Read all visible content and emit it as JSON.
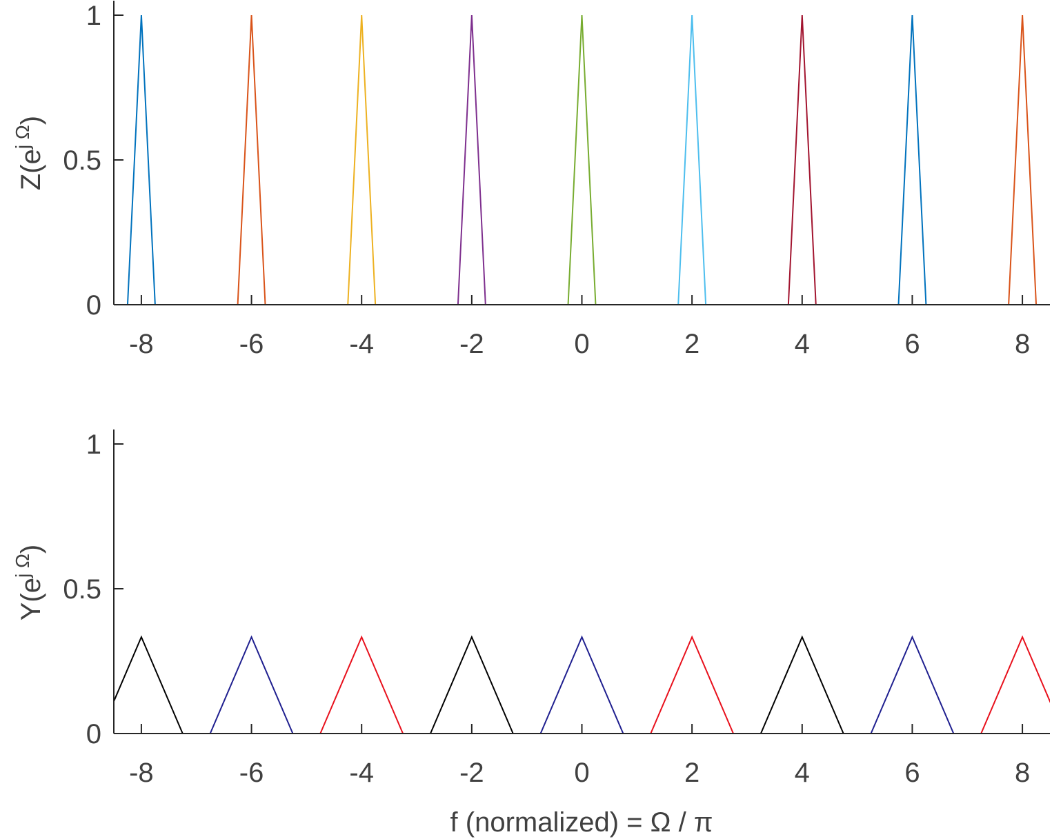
{
  "chart_data": [
    {
      "type": "line",
      "ylabel": {
        "main": "Z(e",
        "sup": "j Ω",
        "tail": ")"
      },
      "xlabel": "",
      "xlim": [
        -8.5,
        8.5
      ],
      "ylim": [
        0,
        1.05
      ],
      "xticks": [
        -8,
        -6,
        -4,
        -2,
        0,
        2,
        4,
        6,
        8
      ],
      "yticks": [
        0,
        0.5,
        1
      ],
      "xtick_labels": [
        "-8",
        "-6",
        "-4",
        "-2",
        "0",
        "2",
        "4",
        "6",
        "8"
      ],
      "ytick_labels": [
        "0",
        "0.5",
        "1"
      ],
      "grid": false,
      "series": [
        {
          "center": -8,
          "halfwidth": 0.25,
          "peak": 1,
          "color": "#0072BD"
        },
        {
          "center": -6,
          "halfwidth": 0.25,
          "peak": 1,
          "color": "#D95319"
        },
        {
          "center": -4,
          "halfwidth": 0.25,
          "peak": 1,
          "color": "#EDB120"
        },
        {
          "center": -2,
          "halfwidth": 0.25,
          "peak": 1,
          "color": "#7E2F8E"
        },
        {
          "center": 0,
          "halfwidth": 0.25,
          "peak": 1,
          "color": "#77AC30"
        },
        {
          "center": 2,
          "halfwidth": 0.25,
          "peak": 1,
          "color": "#4DBEEE"
        },
        {
          "center": 4,
          "halfwidth": 0.25,
          "peak": 1,
          "color": "#A2142F"
        },
        {
          "center": 6,
          "halfwidth": 0.25,
          "peak": 1,
          "color": "#0072BD"
        },
        {
          "center": 8,
          "halfwidth": 0.25,
          "peak": 1,
          "color": "#D95319"
        }
      ]
    },
    {
      "type": "line",
      "ylabel": {
        "main": "Y(e",
        "sup": "j Ω",
        "tail": ")"
      },
      "xlabel": "f (normalized) = Ω  / π",
      "xlim": [
        -8.5,
        8.5
      ],
      "ylim": [
        0,
        1.05
      ],
      "xticks": [
        -8,
        -6,
        -4,
        -2,
        0,
        2,
        4,
        6,
        8
      ],
      "yticks": [
        0,
        0.5,
        1
      ],
      "xtick_labels": [
        "-8",
        "-6",
        "-4",
        "-2",
        "0",
        "2",
        "4",
        "6",
        "8"
      ],
      "ytick_labels": [
        "0",
        "0.5",
        "1"
      ],
      "grid": false,
      "series": [
        {
          "center": -8,
          "halfwidth": 0.75,
          "peak": 0.3333,
          "color": "#000000"
        },
        {
          "center": -6,
          "halfwidth": 0.75,
          "peak": 0.3333,
          "color": "#1F1F8F"
        },
        {
          "center": -4,
          "halfwidth": 0.75,
          "peak": 0.3333,
          "color": "#E8101C"
        },
        {
          "center": -2,
          "halfwidth": 0.75,
          "peak": 0.3333,
          "color": "#000000"
        },
        {
          "center": 0,
          "halfwidth": 0.75,
          "peak": 0.3333,
          "color": "#1F1F8F"
        },
        {
          "center": 2,
          "halfwidth": 0.75,
          "peak": 0.3333,
          "color": "#E8101C"
        },
        {
          "center": 4,
          "halfwidth": 0.75,
          "peak": 0.3333,
          "color": "#000000"
        },
        {
          "center": 6,
          "halfwidth": 0.75,
          "peak": 0.3333,
          "color": "#1F1F8F"
        },
        {
          "center": 8,
          "halfwidth": 0.75,
          "peak": 0.3333,
          "color": "#E8101C"
        }
      ]
    }
  ]
}
